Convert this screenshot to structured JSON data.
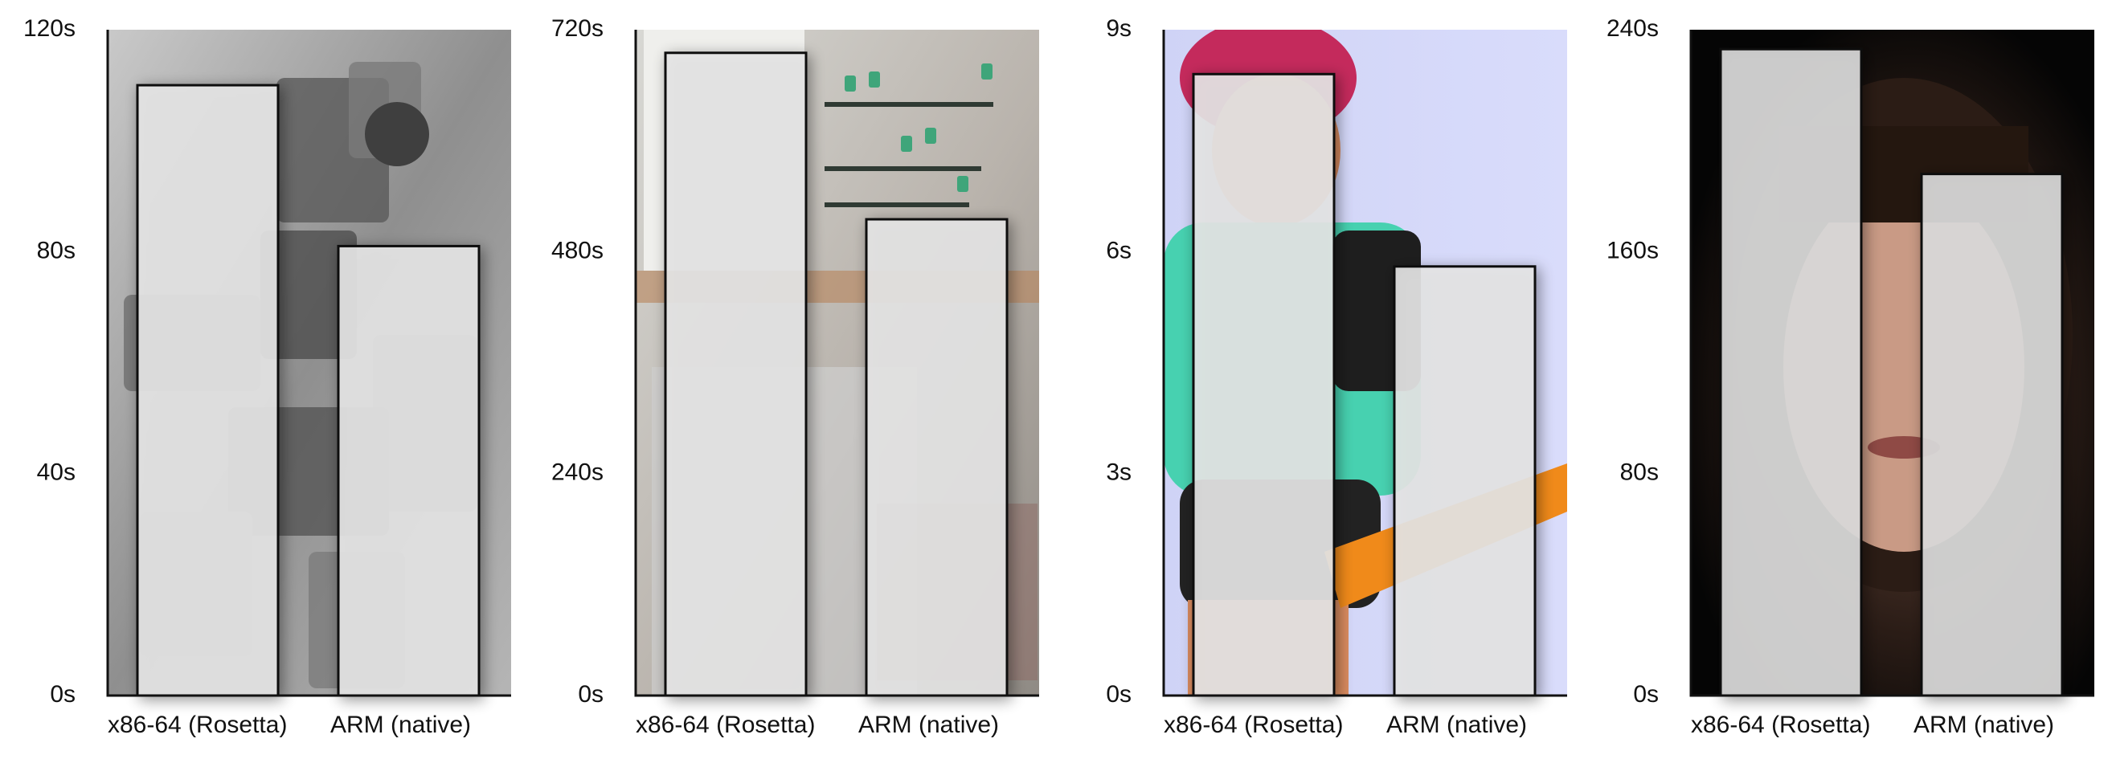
{
  "chart_data": [
    {
      "type": "bar",
      "title": "",
      "xlabel": "",
      "ylabel": "",
      "categories": [
        "x86-64 (Rosetta)",
        "ARM (native)"
      ],
      "values": [
        110,
        81
      ],
      "ylim": [
        0,
        120
      ],
      "ticks": [
        0,
        40,
        80,
        120
      ],
      "tick_labels": [
        "0s",
        "40s",
        "80s",
        "120s"
      ],
      "background": "robot",
      "bar_fill": "#e6e6e6"
    },
    {
      "type": "bar",
      "title": "",
      "xlabel": "",
      "ylabel": "",
      "categories": [
        "x86-64 (Rosetta)",
        "ARM (native)"
      ],
      "values": [
        695,
        515
      ],
      "ylim": [
        0,
        720
      ],
      "ticks": [
        0,
        240,
        480,
        720
      ],
      "tick_labels": [
        "0s",
        "240s",
        "480s",
        "720s"
      ],
      "background": "kitchen",
      "bar_fill": "#e6e6e6"
    },
    {
      "type": "bar",
      "title": "",
      "xlabel": "",
      "ylabel": "",
      "categories": [
        "x86-64 (Rosetta)",
        "ARM (native)"
      ],
      "values": [
        8.4,
        5.8
      ],
      "ylim": [
        0,
        9
      ],
      "ticks": [
        0,
        3,
        6,
        9
      ],
      "tick_labels": [
        "0s",
        "3s",
        "6s",
        "9s"
      ],
      "background": "cartoon-girl",
      "bar_fill": "#e6e6e6"
    },
    {
      "type": "bar",
      "title": "",
      "xlabel": "",
      "ylabel": "",
      "categories": [
        "x86-64 (Rosetta)",
        "ARM (native)"
      ],
      "values": [
        233,
        188
      ],
      "ylim": [
        0,
        240
      ],
      "ticks": [
        0,
        80,
        160,
        240
      ],
      "tick_labels": [
        "0s",
        "80s",
        "160s",
        "240s"
      ],
      "background": "portrait",
      "bar_fill": "#dcdcdc"
    }
  ],
  "colors": {
    "axis": "#111111",
    "bar_stroke": "#111111",
    "text": "#111111"
  }
}
